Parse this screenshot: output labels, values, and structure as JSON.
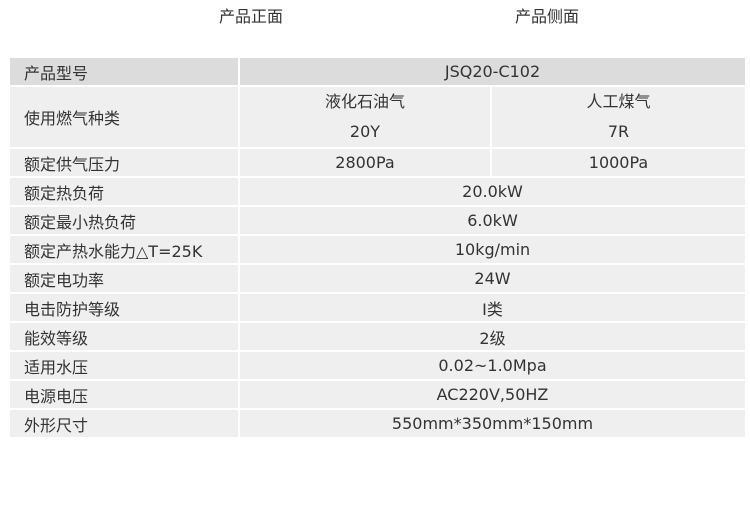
{
  "captions": {
    "front": "产品正面",
    "side": "产品侧面"
  },
  "table": {
    "model": {
      "label": "产品型号",
      "value": "JSQ20-C102"
    },
    "gas_type": {
      "label": "使用燃气种类",
      "lpg": "液化石油气",
      "lpg_code": "20Y",
      "artificial": "人工煤气",
      "artificial_code": "7R"
    },
    "gas_pressure": {
      "label": "额定供气压力",
      "lpg": "2800Pa",
      "artificial": "1000Pa"
    },
    "rows": [
      {
        "label": "额定热负荷",
        "value": "20.0kW"
      },
      {
        "label": "额定最小热负荷",
        "value": "6.0kW"
      },
      {
        "label": "额定产热水能力△T=25K",
        "value": "10kg/min"
      },
      {
        "label": "额定电功率",
        "value": "24W"
      },
      {
        "label": "电击防护等级",
        "value": "Ⅰ类"
      },
      {
        "label": "能效等级",
        "value": "2级"
      },
      {
        "label": "适用水压",
        "value": "0.02~1.0Mpa"
      },
      {
        "label": "电源电压",
        "value": "AC220V,50HZ"
      },
      {
        "label": "外形尺寸",
        "value": "550mm*350mm*150mm"
      }
    ]
  }
}
